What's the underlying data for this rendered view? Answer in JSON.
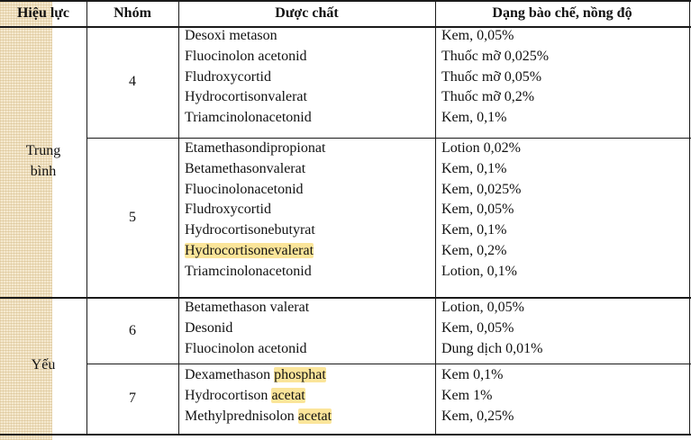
{
  "headers": {
    "potency": "Hiệu lực",
    "group": "Nhóm",
    "drug": "Dược chất",
    "form": "Dạng bào chế, nồng độ"
  },
  "potency_labels": {
    "medium_line1": "Trung",
    "medium_line2": "bình",
    "weak": "Yếu"
  },
  "groups": [
    {
      "number": "4",
      "drugs": [
        {
          "name": "Desoxi metason"
        },
        {
          "name": "Fluocinolon acetonid"
        },
        {
          "name": "Fludroxycortid"
        },
        {
          "name": "Hydrocortisonvalerat"
        },
        {
          "name": "Triamcinolonacetonid"
        }
      ],
      "forms": [
        "Kem, 0,05%",
        "Thuốc mỡ 0,025%",
        "Thuốc mỡ 0,05%",
        "Thuốc mỡ 0,2%",
        "Kem, 0,1%"
      ]
    },
    {
      "number": "5",
      "drugs": [
        {
          "name": "Etamethasondipropionat"
        },
        {
          "name": "Betamethasonvalerat"
        },
        {
          "name": "Fluocinolonacetonid"
        },
        {
          "name": "Fludroxycortid"
        },
        {
          "name": "Hydrocortisonebutyrat"
        },
        {
          "name": "Hydrocortisonevalerat"
        },
        {
          "name": "Triamcinolonacetonid"
        }
      ],
      "forms": [
        "Lotion 0,02%",
        "Kem, 0,1%",
        "Kem, 0,025%",
        "Kem, 0,05%",
        "Kem, 0,1%",
        "Kem, 0,2%",
        "Lotion, 0,1%"
      ]
    },
    {
      "number": "6",
      "drugs": [
        {
          "name": "Betamethason valerat"
        },
        {
          "name": "Desonid"
        },
        {
          "name": "Fluocinolon acetonid"
        }
      ],
      "forms": [
        "Lotion, 0,05%",
        "Kem, 0,05%",
        "Dung dịch 0,01%"
      ]
    },
    {
      "number": "7",
      "drugs": [
        {
          "name_part1": "Dexamethason ",
          "name_part2": "phosphat"
        },
        {
          "name_part1": "Hydrocortison ",
          "name_part2": "acetat"
        },
        {
          "name_part1": "Methylprednisolon ",
          "name_part2": "acetat"
        }
      ],
      "forms": [
        "Kem 0,1%",
        "Kem 1%",
        "Kem, 0,25%"
      ]
    }
  ],
  "colors": {
    "highlight": "#fbe59a",
    "stripe": "#f5e9cf"
  }
}
